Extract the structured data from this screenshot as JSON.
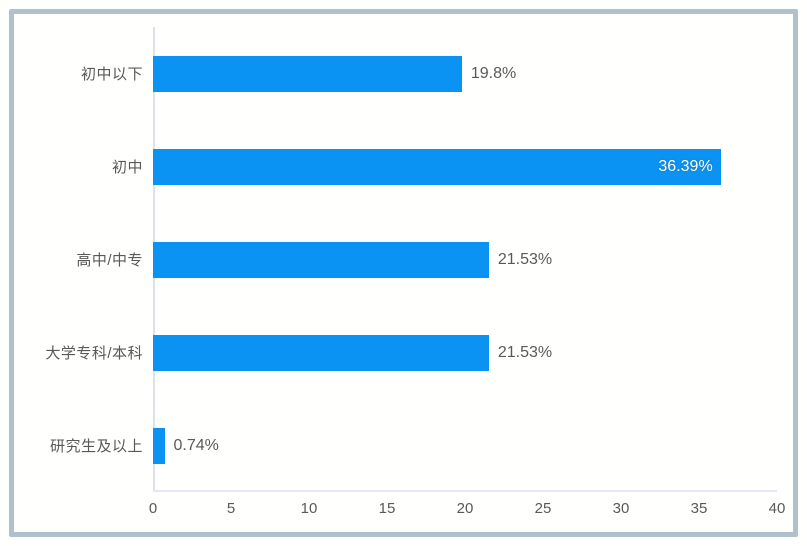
{
  "chart_data": {
    "type": "bar",
    "orientation": "horizontal",
    "title": "",
    "xlabel": "",
    "ylabel": "",
    "categories": [
      "初中以下",
      "初中",
      "高中/中专",
      "大学专科/本科",
      "研究生及以上"
    ],
    "values": [
      19.8,
      36.39,
      21.53,
      21.53,
      0.74
    ],
    "value_labels": [
      "19.8%",
      "36.39%",
      "21.53%",
      "21.53%",
      "0.74%"
    ],
    "label_inside": [
      false,
      true,
      false,
      false,
      false
    ],
    "x_ticks": [
      "0",
      "5",
      "10",
      "15",
      "20",
      "25",
      "30",
      "35",
      "40"
    ],
    "x_tick_values": [
      0,
      5,
      10,
      15,
      20,
      25,
      30,
      35,
      40
    ],
    "xlim": [
      0,
      40
    ],
    "grid": false,
    "legend": null,
    "colors": {
      "bar": "#0a93f2",
      "label_text": "#595959",
      "value_text_outside": "#595959",
      "value_text_inside": "#ffffff",
      "axis_line": "#dde1ea",
      "frame_border": "#b1c0cd",
      "background": "#fffffe"
    }
  }
}
